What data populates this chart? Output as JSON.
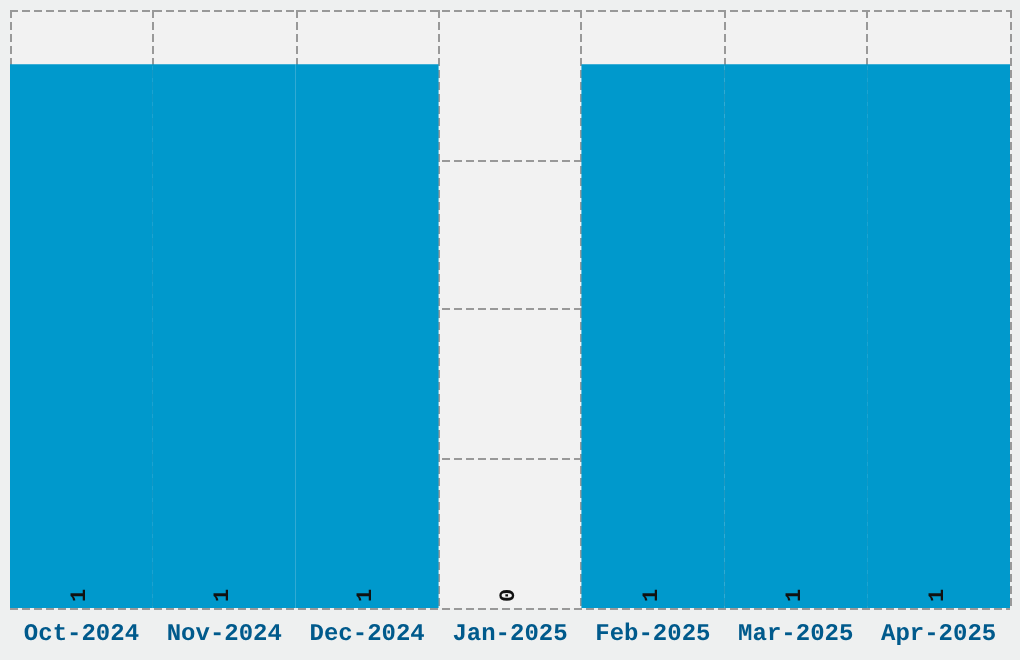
{
  "chart_data": {
    "type": "bar",
    "categories": [
      "Oct-2024",
      "Nov-2024",
      "Dec-2024",
      "Jan-2025",
      "Feb-2025",
      "Mar-2025",
      "Apr-2025"
    ],
    "values": [
      1,
      1,
      1,
      0,
      1,
      1,
      1
    ],
    "color": "#0099cc",
    "data_labels": true,
    "grid": true,
    "tick_labels": "x",
    "ylim": [
      0,
      1.1
    ],
    "yticks": [
      {
        "value": 0,
        "label": null
      },
      {
        "value": 0.275,
        "label": null
      },
      {
        "value": 0.55,
        "label": null
      },
      {
        "value": 0.825,
        "label": null
      },
      {
        "value": 1.1,
        "label": null
      }
    ]
  }
}
